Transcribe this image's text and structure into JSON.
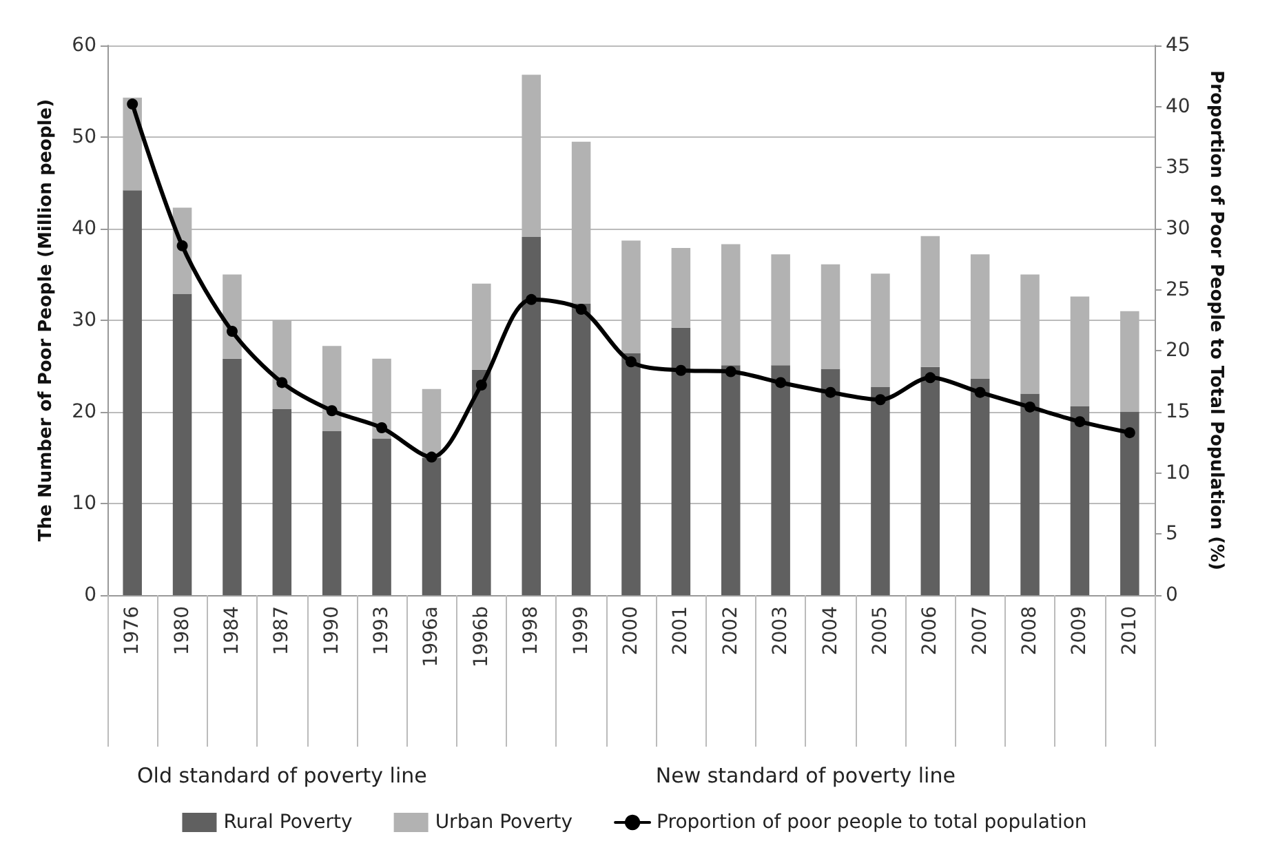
{
  "chart_data": {
    "type": "bar",
    "stacked": true,
    "categories": [
      "1976",
      "1980",
      "1984",
      "1987",
      "1990",
      "1993",
      "1996a",
      "1996b",
      "1998",
      "1999",
      "2000",
      "2001",
      "2002",
      "2003",
      "2004",
      "2005",
      "2006",
      "2007",
      "2008",
      "2009",
      "2010"
    ],
    "series": [
      {
        "name": "Rural Poverty",
        "color": "#606060",
        "values": [
          44.2,
          32.9,
          25.8,
          20.3,
          17.9,
          17.1,
          15.0,
          24.6,
          39.1,
          31.8,
          26.4,
          29.2,
          25.1,
          25.1,
          24.7,
          22.7,
          24.9,
          23.6,
          22.0,
          20.6,
          20.0
        ]
      },
      {
        "name": "Urban Poverty",
        "color": "#b2b2b2",
        "values": [
          10.1,
          9.4,
          9.2,
          9.7,
          9.3,
          8.7,
          7.5,
          9.4,
          17.7,
          17.7,
          12.3,
          8.7,
          13.2,
          12.1,
          11.4,
          12.4,
          14.3,
          13.6,
          13.0,
          12.0,
          11.0
        ]
      },
      {
        "name": "Proportion of poor people to total population",
        "type": "line",
        "axis": "y2",
        "color": "#000000",
        "marker": "circle",
        "values": [
          40.2,
          28.6,
          21.6,
          17.4,
          15.1,
          13.7,
          11.3,
          17.2,
          24.2,
          23.4,
          19.1,
          18.4,
          18.3,
          17.4,
          16.6,
          16.0,
          17.8,
          16.6,
          15.4,
          14.2,
          13.3
        ]
      }
    ],
    "ylabel": "The Number of Poor People (Million people)",
    "y2label": "Proportion of Poor People to Total Population (%)",
    "ylim": [
      0,
      60
    ],
    "yticks": [
      0,
      10,
      20,
      30,
      40,
      50,
      60
    ],
    "y2lim": [
      0,
      45
    ],
    "y2ticks": [
      0,
      5,
      10,
      15,
      20,
      25,
      30,
      35,
      40,
      45
    ],
    "grid": "y",
    "legend": "bottom",
    "annotations": [
      "Old standard of poverty line",
      "New standard of poverty line"
    ]
  }
}
